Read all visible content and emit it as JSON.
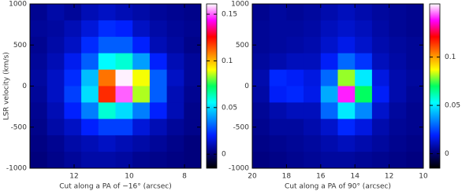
{
  "chart_data": [
    {
      "type": "heatmap",
      "xlabel": "Cut along a PA of −16° (arcsec)",
      "ylabel": "LSR velocity (km/s)",
      "x": [
        13.29,
        12.67,
        12.05,
        11.43,
        10.81,
        10.19,
        9.57,
        8.95,
        8.33,
        7.71
      ],
      "y": [
        900,
        700,
        500,
        300,
        100,
        -100,
        -300,
        -500,
        -700,
        -900
      ],
      "z": [
        [
          0.005,
          0.008,
          0.006,
          0.01,
          0.012,
          0.01,
          0.008,
          0.006,
          0.005,
          0.004
        ],
        [
          0.006,
          0.007,
          0.01,
          0.015,
          0.022,
          0.02,
          0.012,
          0.008,
          0.006,
          0.005
        ],
        [
          0.005,
          0.008,
          0.012,
          0.022,
          0.03,
          0.03,
          0.02,
          0.01,
          0.007,
          0.004
        ],
        [
          0.006,
          0.01,
          0.018,
          0.03,
          0.055,
          0.06,
          0.04,
          0.02,
          0.01,
          0.006
        ],
        [
          0.007,
          0.012,
          0.022,
          0.045,
          0.11,
          0.16,
          0.09,
          0.03,
          0.012,
          0.006
        ],
        [
          0.006,
          0.012,
          0.025,
          0.05,
          0.12,
          0.15,
          0.085,
          0.03,
          0.01,
          0.005
        ],
        [
          0.005,
          0.01,
          0.02,
          0.035,
          0.06,
          0.05,
          0.035,
          0.02,
          0.01,
          0.004
        ],
        [
          0.004,
          0.008,
          0.012,
          0.02,
          0.025,
          0.025,
          0.015,
          0.01,
          0.006,
          0.004
        ],
        [
          0.003,
          0.005,
          0.008,
          0.01,
          0.012,
          0.01,
          0.008,
          0.006,
          0.004,
          0.002
        ],
        [
          0.002,
          0.004,
          0.006,
          0.008,
          0.008,
          0.007,
          0.005,
          0.004,
          0.003,
          0.002
        ]
      ],
      "xlim": [
        13.6,
        7.4
      ],
      "xticks": [
        12,
        10,
        8
      ],
      "ylim": [
        -1000,
        1000
      ],
      "yticks": [
        -1000,
        -500,
        0,
        500,
        1000
      ],
      "clim": [
        -0.015,
        0.161
      ],
      "cticks": [
        0,
        0.05,
        0.1,
        0.15
      ],
      "colormap": [
        "#000000",
        "#000080",
        "#0020ff",
        "#0090ff",
        "#00ffff",
        "#00ff60",
        "#ffff00",
        "#ff8000",
        "#ff0000",
        "#ff00ff",
        "#ffffff"
      ]
    },
    {
      "type": "heatmap",
      "xlabel": "Cut along a PA of 90° (arcsec)",
      "x": [
        19.5,
        18.5,
        17.5,
        16.5,
        15.5,
        14.5,
        13.5,
        12.5,
        11.5,
        10.5
      ],
      "y": [
        900,
        700,
        500,
        300,
        100,
        -100,
        -300,
        -500,
        -700,
        -900
      ],
      "z": [
        [
          0.004,
          0.006,
          0.005,
          0.006,
          0.008,
          0.01,
          0.008,
          0.006,
          0.005,
          0.004
        ],
        [
          0.005,
          0.006,
          0.006,
          0.007,
          0.01,
          0.012,
          0.01,
          0.007,
          0.005,
          0.004
        ],
        [
          0.005,
          0.006,
          0.007,
          0.008,
          0.012,
          0.016,
          0.012,
          0.008,
          0.006,
          0.005
        ],
        [
          0.006,
          0.008,
          0.01,
          0.01,
          0.018,
          0.03,
          0.022,
          0.01,
          0.007,
          0.005
        ],
        [
          0.008,
          0.02,
          0.018,
          0.015,
          0.03,
          0.08,
          0.05,
          0.015,
          0.008,
          0.006
        ],
        [
          0.007,
          0.018,
          0.02,
          0.016,
          0.04,
          0.14,
          0.07,
          0.018,
          0.008,
          0.005
        ],
        [
          0.005,
          0.008,
          0.01,
          0.01,
          0.03,
          0.05,
          0.035,
          0.012,
          0.006,
          0.004
        ],
        [
          0.004,
          0.006,
          0.006,
          0.008,
          0.012,
          0.02,
          0.015,
          0.008,
          0.005,
          0.004
        ],
        [
          0.003,
          0.004,
          0.005,
          0.006,
          0.008,
          0.01,
          0.008,
          0.006,
          0.004,
          0.003
        ],
        [
          0.002,
          0.003,
          0.004,
          0.005,
          0.006,
          0.006,
          0.005,
          0.004,
          0.003,
          0.002
        ]
      ],
      "xlim": [
        20,
        10
      ],
      "xticks": [
        20,
        18,
        16,
        14,
        12,
        10
      ],
      "ylim": [
        -1000,
        1000
      ],
      "yticks": [
        -1000,
        -500,
        0,
        500,
        1000
      ],
      "clim": [
        -0.015,
        0.155
      ],
      "cticks": [
        0,
        0.05,
        0.1
      ],
      "colormap": [
        "#000000",
        "#000080",
        "#0020ff",
        "#0090ff",
        "#00ffff",
        "#00ff60",
        "#ffff00",
        "#ff8000",
        "#ff0000",
        "#ff00ff",
        "#ffffff"
      ]
    }
  ]
}
